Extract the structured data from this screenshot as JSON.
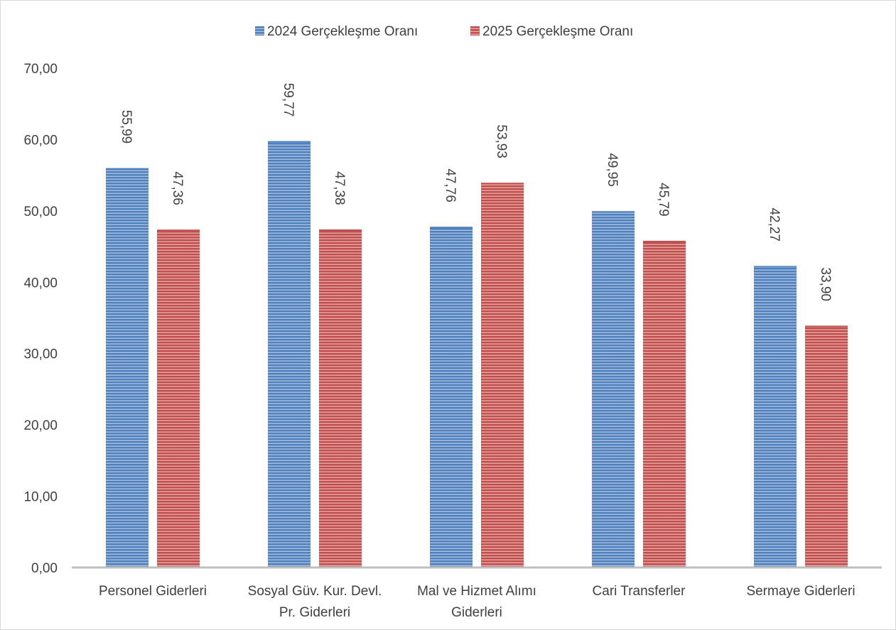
{
  "chart_data": {
    "type": "bar",
    "title": "",
    "xlabel": "",
    "ylabel": "",
    "ylim": [
      0,
      70
    ],
    "y_ticks": [
      "0,00",
      "10,00",
      "20,00",
      "30,00",
      "40,00",
      "50,00",
      "60,00",
      "70,00"
    ],
    "grid": false,
    "legend_position": "top-center",
    "categories": [
      [
        "Personel Giderleri"
      ],
      [
        "Sosyal Güv. Kur. Devl.",
        "Pr. Giderleri"
      ],
      [
        "Mal ve Hizmet Alımı",
        "Giderleri"
      ],
      [
        "Cari Transferler"
      ],
      [
        "Sermaye Giderleri"
      ]
    ],
    "series": [
      {
        "name": "2024 Gerçekleşme Oranı",
        "color": "#4f81bd",
        "values": [
          55.99,
          59.77,
          47.76,
          49.95,
          42.27
        ],
        "labels": [
          "55,99",
          "59,77",
          "47,76",
          "49,95",
          "42,27"
        ]
      },
      {
        "name": "2025 Gerçekleşme Oranı",
        "color": "#c0504d",
        "values": [
          47.36,
          47.38,
          53.93,
          45.79,
          33.9
        ],
        "labels": [
          "47,36",
          "47,38",
          "53,93",
          "45,79",
          "33,90"
        ]
      }
    ]
  }
}
